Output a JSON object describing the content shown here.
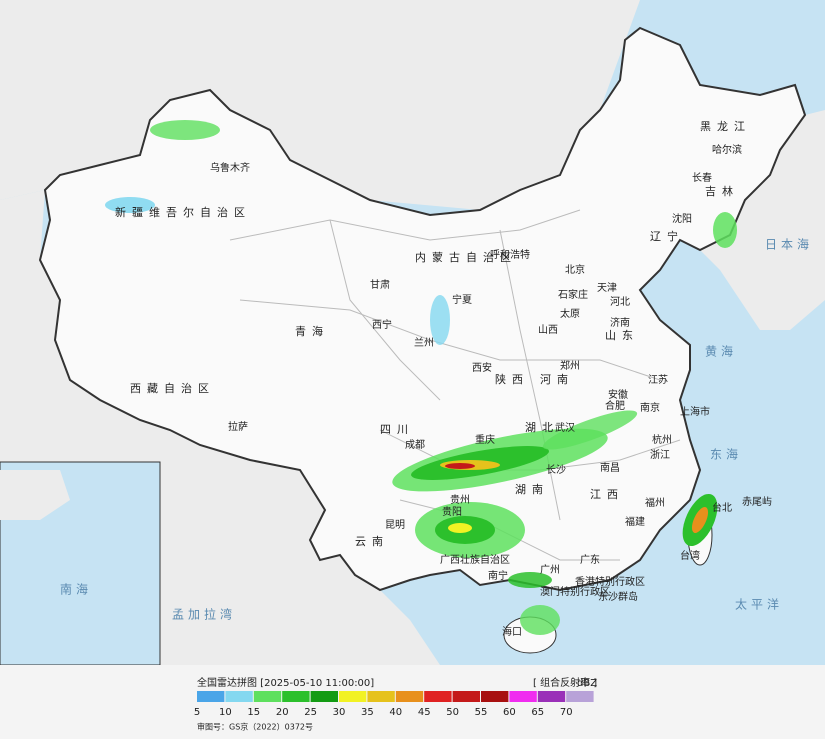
{
  "title": "全国雷达拼图 [2025-05-10 11:00:00]",
  "product": "[ 组合反射率 ]",
  "approval": "审图号：GS京（2022）0372号",
  "legend": {
    "unit": "dBZ",
    "items": [
      {
        "value": 5,
        "color": "#4aa5e8"
      },
      {
        "value": 10,
        "color": "#84d8f0"
      },
      {
        "value": 15,
        "color": "#5ee05e"
      },
      {
        "value": 20,
        "color": "#2cc02c"
      },
      {
        "value": 25,
        "color": "#139b13"
      },
      {
        "value": 30,
        "color": "#f2f224"
      },
      {
        "value": 35,
        "color": "#e6c21c"
      },
      {
        "value": 40,
        "color": "#e8901c"
      },
      {
        "value": 45,
        "color": "#e02222"
      },
      {
        "value": 50,
        "color": "#c41a1a"
      },
      {
        "value": 55,
        "color": "#a81010"
      },
      {
        "value": 60,
        "color": "#f02cf0"
      },
      {
        "value": 65,
        "color": "#9a30b8"
      },
      {
        "value": 70,
        "color": "#b8a2d8"
      }
    ]
  },
  "places": [
    "乌鲁木齐",
    "新疆维吾尔自治区",
    "西藏自治区",
    "拉萨",
    "青海",
    "西宁",
    "甘肃",
    "兰州",
    "内蒙古自治区",
    "呼和浩特",
    "黑龙江",
    "哈尔滨",
    "吉林",
    "长春",
    "辽宁",
    "沈阳",
    "北京",
    "天津",
    "河北",
    "石家庄",
    "山西",
    "太原",
    "山东",
    "济南",
    "河南",
    "郑州",
    "陕西",
    "西安",
    "宁夏",
    "四川",
    "成都",
    "重庆",
    "湖北",
    "武汉",
    "湖南",
    "长沙",
    "江西",
    "南昌",
    "安徽",
    "合肥",
    "江苏",
    "南京",
    "上海市",
    "浙江",
    "杭州",
    "福建",
    "福州",
    "贵州",
    "贵阳",
    "云南",
    "昆明",
    "广西壮族自治区",
    "南宁",
    "广东",
    "广州",
    "香港特别行政区",
    "澳门特别行政区",
    "海口",
    "台湾",
    "台北",
    "日本海",
    "黄海",
    "东海",
    "太平洋",
    "孟加拉湾",
    "南海",
    "赤尾屿",
    "东沙群岛"
  ]
}
